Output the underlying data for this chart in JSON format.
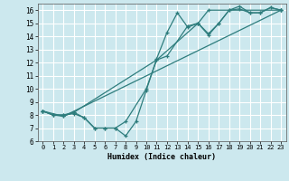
{
  "xlabel": "Humidex (Indice chaleur)",
  "xlim": [
    -0.5,
    23.5
  ],
  "ylim": [
    6,
    16.5
  ],
  "yticks": [
    6,
    7,
    8,
    9,
    10,
    11,
    12,
    13,
    14,
    15,
    16
  ],
  "xticks": [
    0,
    1,
    2,
    3,
    4,
    5,
    6,
    7,
    8,
    9,
    10,
    11,
    12,
    13,
    14,
    15,
    16,
    17,
    18,
    19,
    20,
    21,
    22,
    23
  ],
  "bg_color": "#cce8ee",
  "line_color": "#2e7d7d",
  "grid_color": "#ffffff",
  "series": [
    {
      "x": [
        0,
        1,
        2,
        3,
        4,
        5,
        6,
        7,
        8,
        9,
        10,
        11,
        12,
        13,
        14,
        15,
        16,
        17,
        18,
        19,
        20,
        21,
        22,
        23
      ],
      "y": [
        8.3,
        8.0,
        8.0,
        8.1,
        7.8,
        7.0,
        7.0,
        7.0,
        6.4,
        7.5,
        9.9,
        12.3,
        14.3,
        15.8,
        14.7,
        15.0,
        14.1,
        15.0,
        16.0,
        16.3,
        15.8,
        15.8,
        16.2,
        16.0
      ]
    },
    {
      "x": [
        0,
        1,
        2,
        3,
        4,
        5,
        6,
        7,
        8,
        10,
        11,
        12,
        14,
        15,
        16,
        17,
        18,
        19,
        20,
        21,
        22,
        23
      ],
      "y": [
        8.3,
        8.0,
        8.0,
        8.2,
        7.8,
        7.0,
        7.0,
        7.0,
        7.5,
        10.0,
        12.2,
        12.5,
        14.8,
        15.0,
        14.2,
        15.0,
        16.0,
        16.1,
        15.8,
        15.8,
        16.2,
        16.0
      ]
    },
    {
      "x": [
        0,
        1,
        2,
        3,
        11,
        15,
        16,
        23
      ],
      "y": [
        8.3,
        8.0,
        7.9,
        8.2,
        12.2,
        15.0,
        16.0,
        16.0
      ]
    },
    {
      "x": [
        0,
        2,
        23
      ],
      "y": [
        8.3,
        7.9,
        16.0
      ]
    }
  ]
}
